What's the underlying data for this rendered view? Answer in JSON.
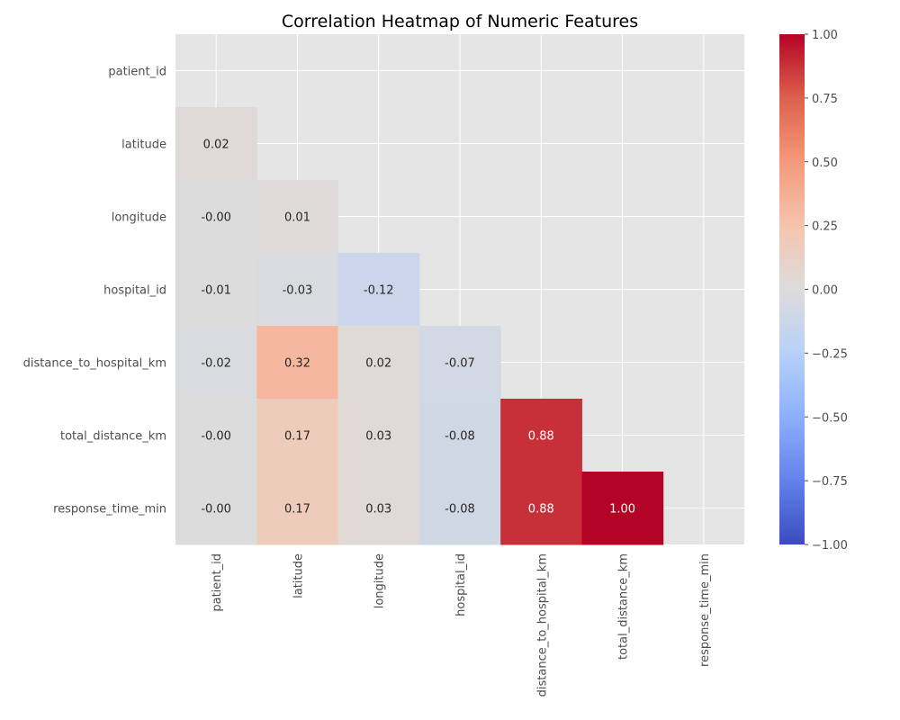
{
  "chart_data": {
    "type": "heatmap",
    "title": "Correlation Heatmap of Numeric Features",
    "variables": [
      "patient_id",
      "latitude",
      "longitude",
      "hospital_id",
      "distance_to_hospital_km",
      "total_distance_km",
      "response_time_min"
    ],
    "mask": "upper-triangle-including-diagonal",
    "matrix": [
      [
        null,
        null,
        null,
        null,
        null,
        null,
        null
      ],
      [
        0.02,
        null,
        null,
        null,
        null,
        null,
        null
      ],
      [
        -0.0,
        0.01,
        null,
        null,
        null,
        null,
        null
      ],
      [
        -0.01,
        -0.03,
        -0.12,
        null,
        null,
        null,
        null
      ],
      [
        -0.02,
        0.32,
        0.02,
        -0.07,
        null,
        null,
        null
      ],
      [
        -0.0,
        0.17,
        0.03,
        -0.08,
        0.88,
        null,
        null
      ],
      [
        -0.0,
        0.17,
        0.03,
        -0.08,
        0.88,
        1.0,
        null
      ]
    ],
    "labels": [
      [
        null,
        null,
        null,
        null,
        null,
        null,
        null
      ],
      [
        "0.02",
        null,
        null,
        null,
        null,
        null,
        null
      ],
      [
        "-0.00",
        "0.01",
        null,
        null,
        null,
        null,
        null
      ],
      [
        "-0.01",
        "-0.03",
        "-0.12",
        null,
        null,
        null,
        null
      ],
      [
        "-0.02",
        "0.32",
        "0.02",
        "-0.07",
        null,
        null,
        null
      ],
      [
        "-0.00",
        "0.17",
        "0.03",
        "-0.08",
        "0.88",
        null,
        null
      ],
      [
        "-0.00",
        "0.17",
        "0.03",
        "-0.08",
        "0.88",
        "1.00",
        null
      ]
    ],
    "colormap": "coolwarm",
    "vmin": -1.0,
    "vmax": 1.0,
    "colorbar_ticks": [
      -1.0,
      -0.75,
      -0.5,
      -0.25,
      0.0,
      0.25,
      0.5,
      0.75,
      1.0
    ],
    "colorbar_tick_labels": [
      "−1.00",
      "−0.75",
      "−0.50",
      "−0.25",
      "0.00",
      "0.25",
      "0.50",
      "0.75",
      "1.00"
    ],
    "grid": true,
    "background_color": "#e5e5e5",
    "grid_color": "#ffffff"
  }
}
